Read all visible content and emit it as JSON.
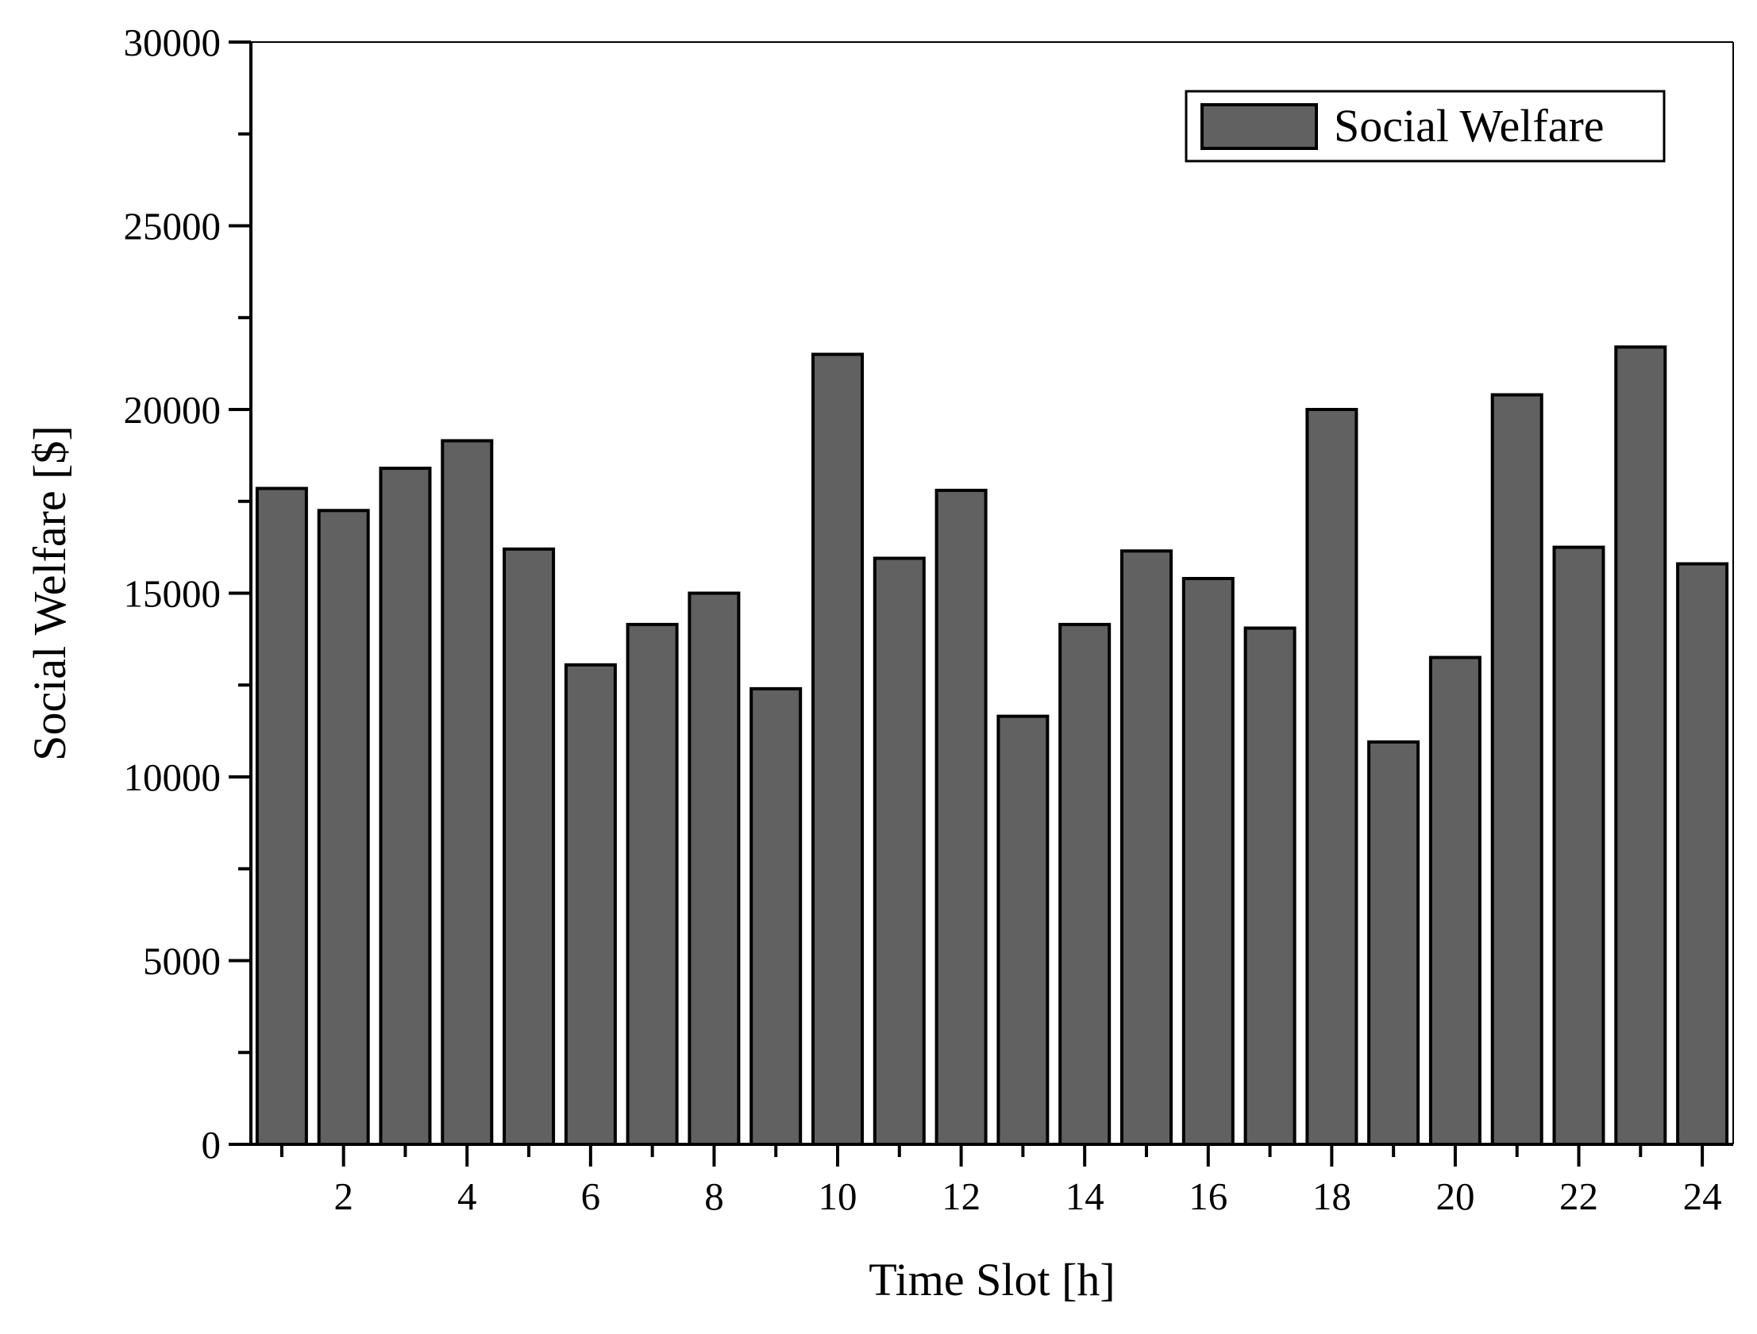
{
  "chart_data": {
    "type": "bar",
    "title": "",
    "xlabel": "Time Slot [h]",
    "ylabel": "Social Welfare [$]",
    "ylim": [
      0,
      30000
    ],
    "xlim": [
      0.5,
      24.5
    ],
    "yticks": [
      0,
      5000,
      10000,
      15000,
      20000,
      25000,
      30000
    ],
    "ytick_labels": [
      "0",
      "5000",
      "10000",
      "15000",
      "20000",
      "25000",
      "30000"
    ],
    "xticks": [
      2,
      4,
      6,
      8,
      10,
      12,
      14,
      16,
      18,
      20,
      22,
      24
    ],
    "xtick_labels": [
      "2",
      "4",
      "6",
      "8",
      "10",
      "12",
      "14",
      "16",
      "18",
      "20",
      "22",
      "24"
    ],
    "categories": [
      1,
      2,
      3,
      4,
      5,
      6,
      7,
      8,
      9,
      10,
      11,
      12,
      13,
      14,
      15,
      16,
      17,
      18,
      19,
      20,
      21,
      22,
      23,
      24
    ],
    "series": [
      {
        "name": "Social Welfare",
        "values": [
          17850,
          17250,
          18400,
          19150,
          16200,
          13050,
          14150,
          15000,
          12400,
          21500,
          15950,
          17800,
          11650,
          14150,
          16150,
          15400,
          14050,
          20000,
          10950,
          13250,
          20400,
          16250,
          21700,
          15800
        ]
      }
    ],
    "legend": {
      "position": "top-right",
      "entries": [
        "Social Welfare"
      ]
    },
    "grid": false
  },
  "colors": {
    "bar_fill": "#616161",
    "bar_stroke": "#000000",
    "axis": "#000000",
    "background": "#ffffff"
  }
}
